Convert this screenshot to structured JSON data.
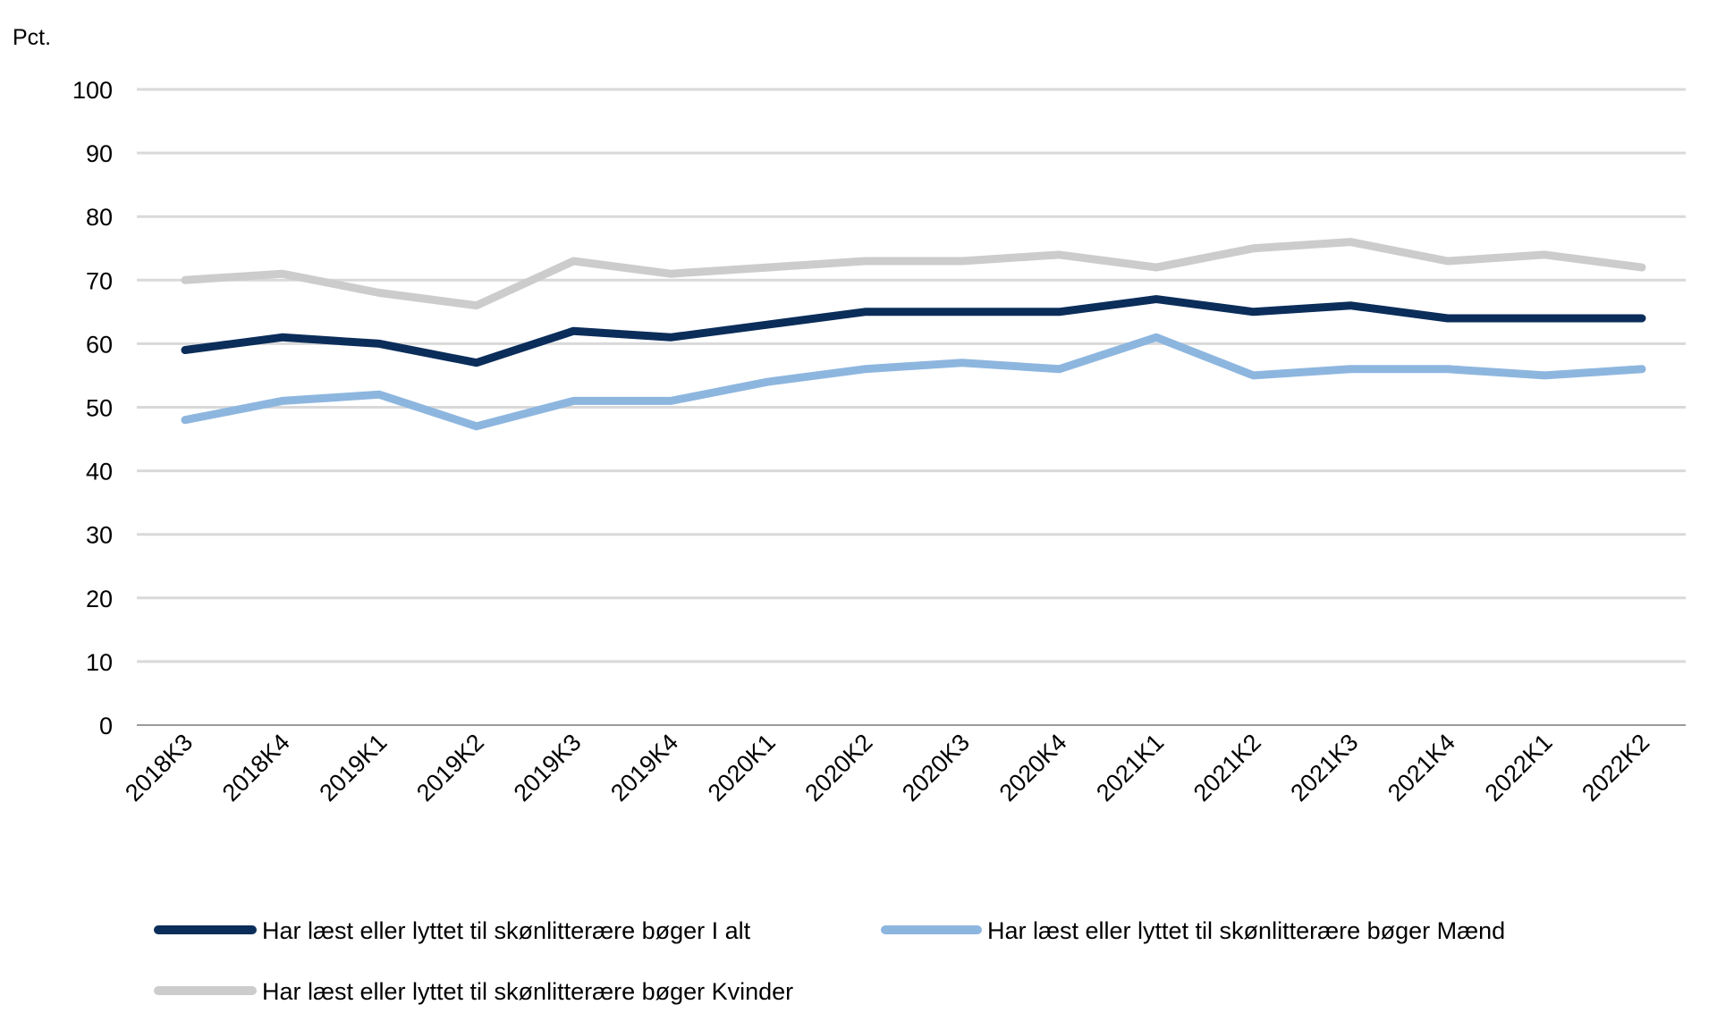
{
  "chart_data": {
    "type": "line",
    "unit_label": "Pct.",
    "ylim": [
      0,
      100
    ],
    "yticks": [
      0,
      10,
      20,
      30,
      40,
      50,
      60,
      70,
      80,
      90,
      100
    ],
    "grid": true,
    "legend_position": "bottom",
    "categories": [
      "2018K3",
      "2018K4",
      "2019K1",
      "2019K2",
      "2019K3",
      "2019K4",
      "2020K1",
      "2020K2",
      "2020K3",
      "2020K4",
      "2021K1",
      "2021K2",
      "2021K3",
      "2021K4",
      "2022K1",
      "2022K2"
    ],
    "series": [
      {
        "name": "Har læst eller lyttet til skønlitterære bøger I alt",
        "color": "#0b2d5a",
        "values": [
          59,
          61,
          60,
          57,
          62,
          61,
          63,
          65,
          65,
          65,
          67,
          65,
          66,
          64,
          64,
          64
        ]
      },
      {
        "name": "Har læst eller lyttet til skønlitterære bøger Mænd",
        "color": "#8db6df",
        "values": [
          48,
          51,
          52,
          47,
          51,
          51,
          54,
          56,
          57,
          56,
          61,
          55,
          56,
          56,
          55,
          56
        ]
      },
      {
        "name": "Har læst eller lyttet til skønlitterære bøger Kvinder",
        "color": "#cccccc",
        "values": [
          70,
          71,
          68,
          66,
          73,
          71,
          72,
          73,
          73,
          74,
          72,
          75,
          76,
          73,
          74,
          72
        ]
      }
    ]
  }
}
